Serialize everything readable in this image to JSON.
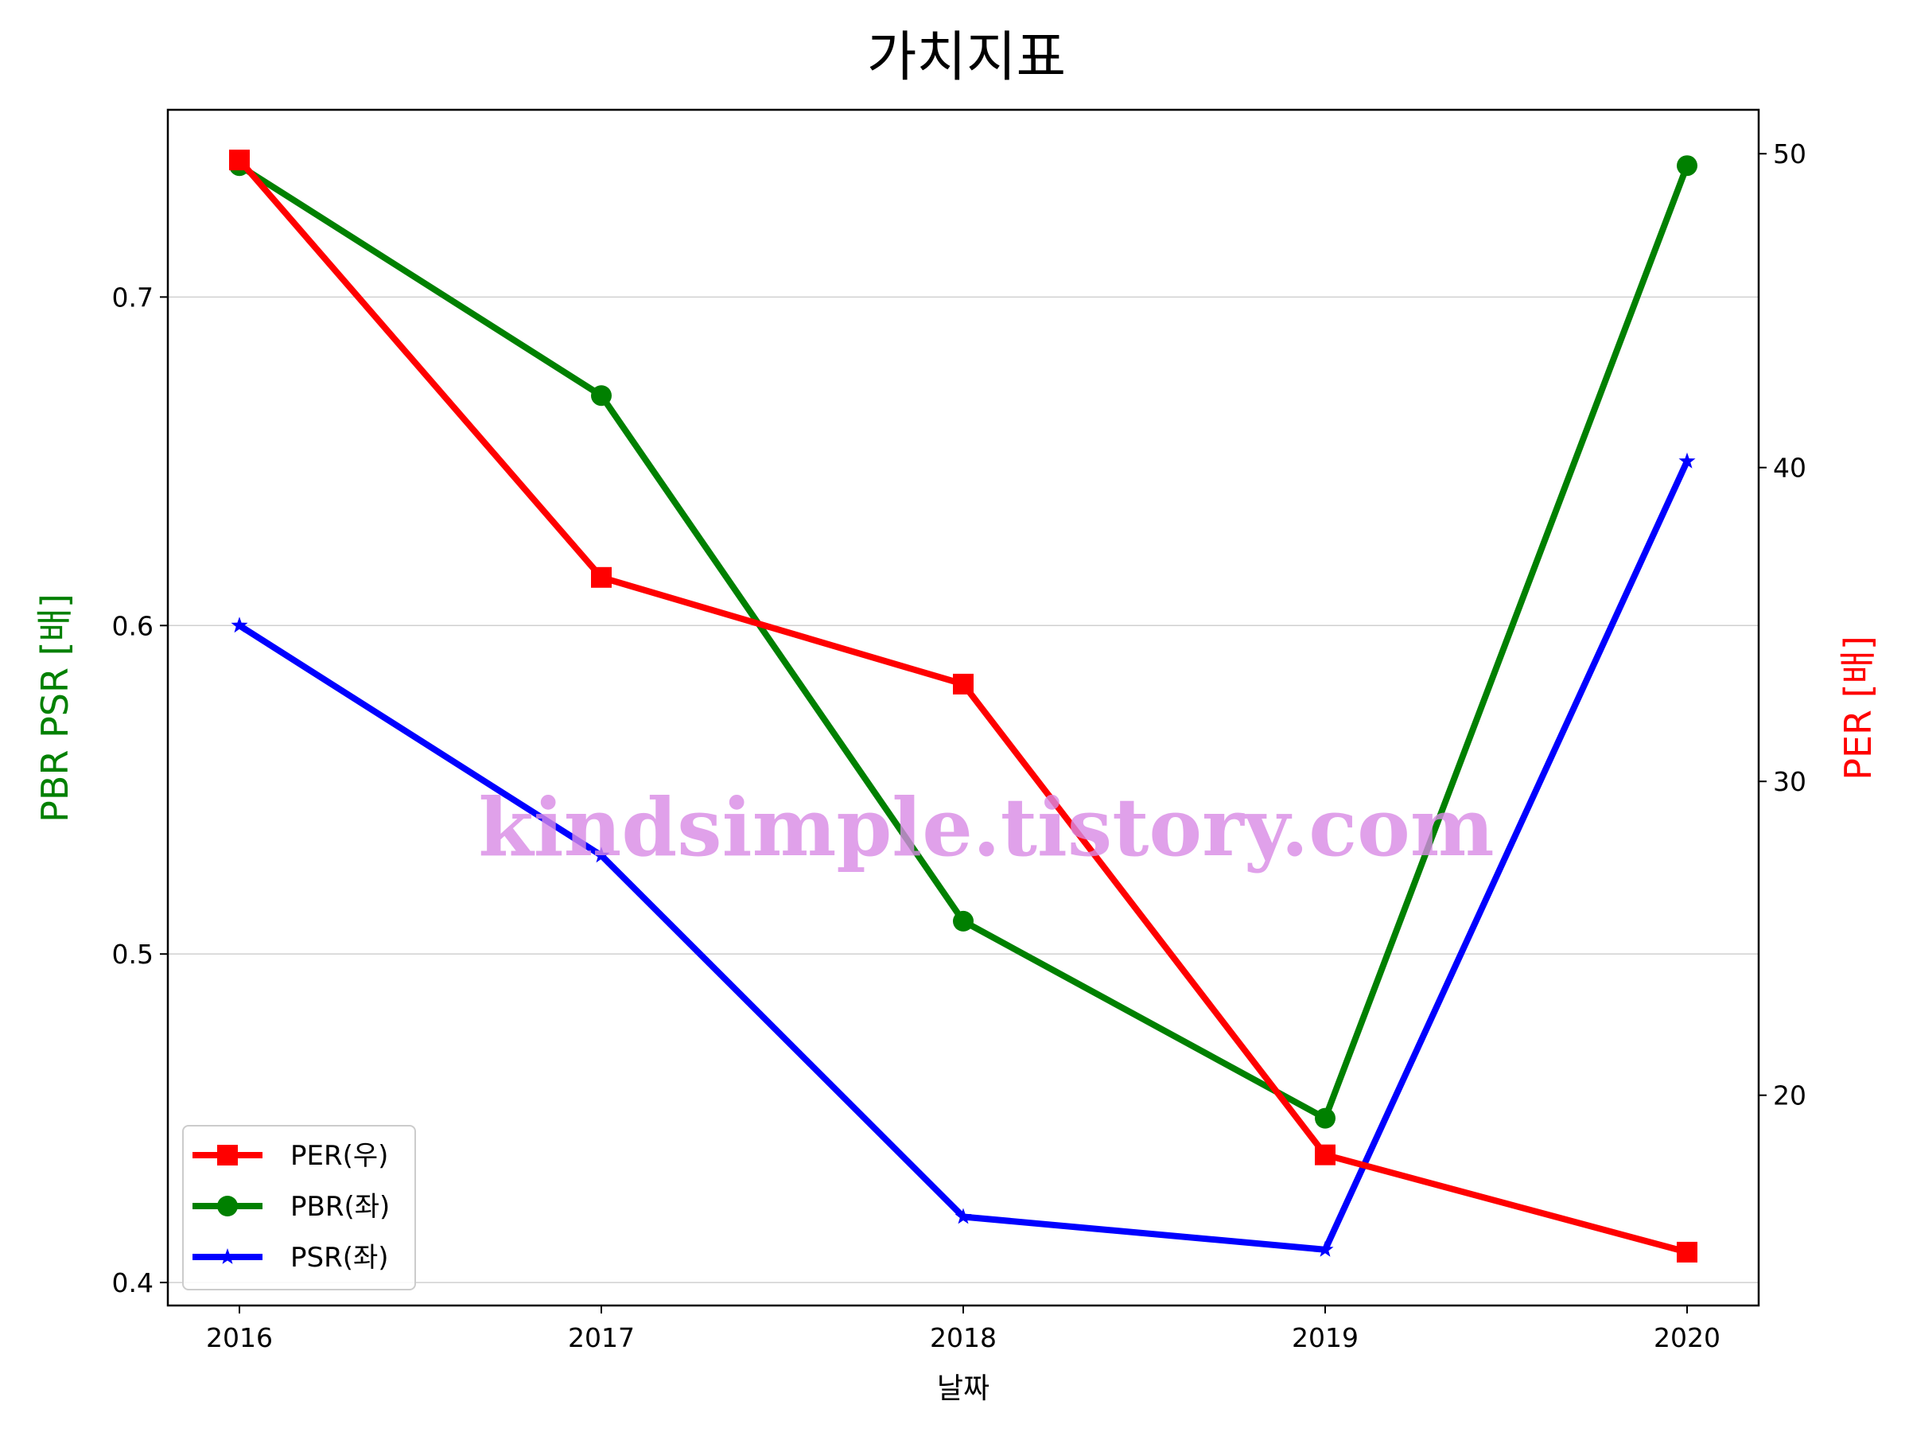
{
  "chart_data": {
    "type": "line",
    "title": "가치지표",
    "xlabel": "날짜",
    "ylabel_left": "PBR PSR [배]",
    "ylabel_right": "PER [배]",
    "categories": [
      "2016",
      "2017",
      "2018",
      "2019",
      "2020"
    ],
    "left_axis": {
      "ylim": [
        0.393,
        0.757
      ],
      "ticks": [
        "0.4",
        "0.5",
        "0.6",
        "0.7"
      ],
      "tick_values": [
        0.4,
        0.5,
        0.6,
        0.7
      ],
      "grid": true
    },
    "right_axis": {
      "ylim": [
        13.3,
        51.4
      ],
      "ticks": [
        "20",
        "30",
        "40",
        "50"
      ],
      "tick_values": [
        20,
        30,
        40,
        50
      ]
    },
    "series": [
      {
        "name": "PER(우)",
        "axis": "right",
        "color": "#ff0000",
        "marker": "square",
        "values": [
          49.8,
          36.5,
          33.1,
          18.1,
          15.0
        ]
      },
      {
        "name": "PBR(좌)",
        "axis": "left",
        "color": "#008000",
        "marker": "circle",
        "values": [
          0.74,
          0.67,
          0.51,
          0.45,
          0.74
        ]
      },
      {
        "name": "PSR(좌)",
        "axis": "left",
        "color": "#0000ff",
        "marker": "star",
        "values": [
          0.6,
          0.53,
          0.42,
          0.41,
          0.65
        ]
      }
    ],
    "legend_position": "lower-left",
    "watermark": "kindsimple.tistory.com"
  }
}
